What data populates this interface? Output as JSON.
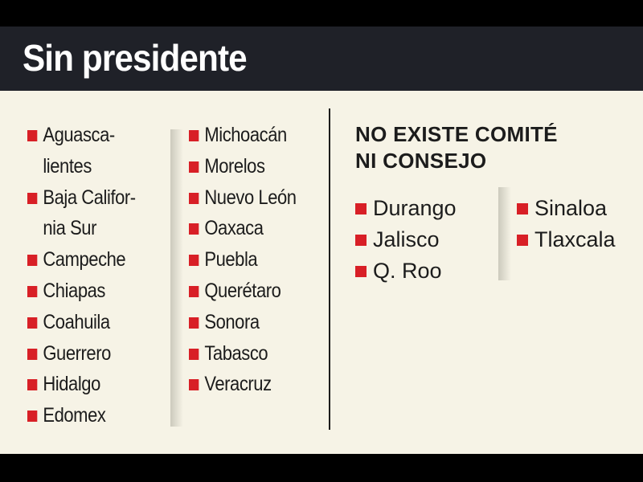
{
  "header": {
    "title": "Sin presidente"
  },
  "left_lists": {
    "col1": [
      "Aguasca-",
      "lientes",
      "Baja Califor-",
      "nia Sur",
      "Campeche",
      "Chiapas",
      "Coahuila",
      "Guerrero",
      "Hidalgo",
      "Edomex"
    ],
    "col2": [
      "Michoacán",
      "Morelos",
      "Nuevo León",
      "Oaxaca",
      "Puebla",
      "Querétaro",
      "Sonora",
      "Tabasco",
      "Veracruz"
    ]
  },
  "right_section": {
    "heading_line1": "NO EXISTE COMITÉ",
    "heading_line2": "NI CONSEJO",
    "col1": [
      "Durango",
      "Jalisco",
      "Q. Roo"
    ],
    "col2": [
      "Sinaloa",
      "Tlaxcala"
    ]
  },
  "colors": {
    "header_bg": "#1f2128",
    "panel_bg": "#f6f3e6",
    "bullet": "#d81f26",
    "text": "#1c1c1c"
  }
}
